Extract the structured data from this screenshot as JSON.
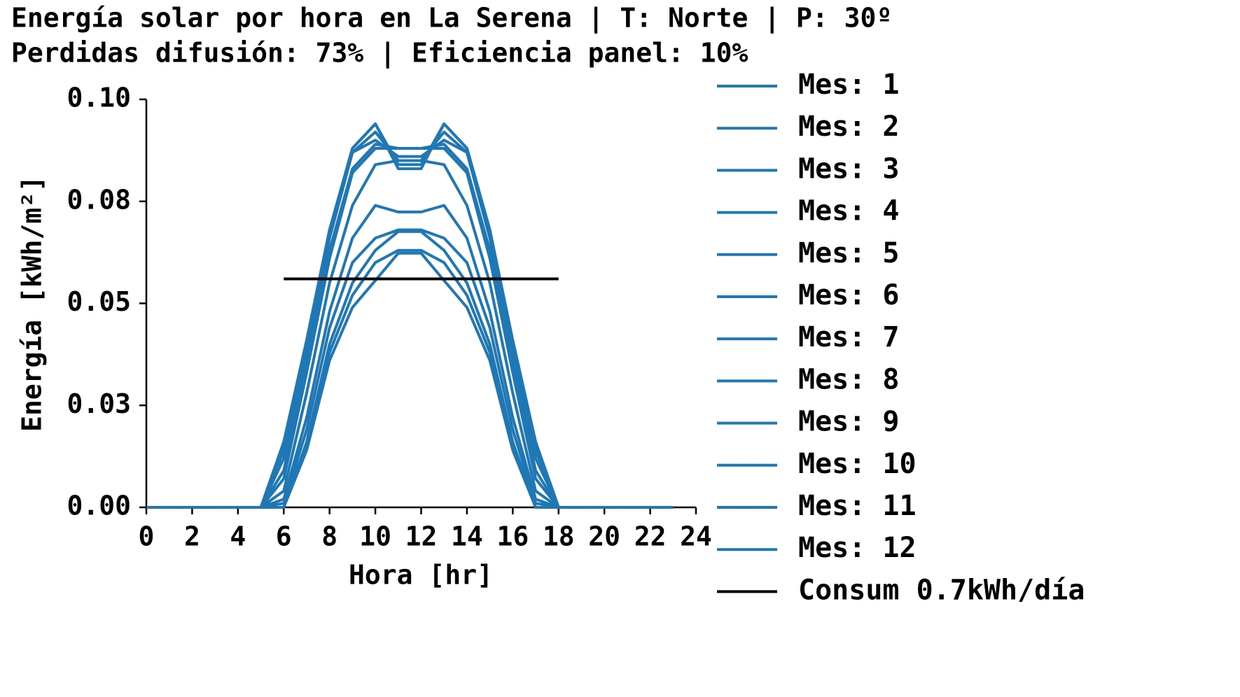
{
  "chart_data": {
    "type": "line",
    "title": "Energía solar por hora en La Serena | T: Norte | P: 30º",
    "subtitle": "Perdidas difusión: 73% | Eficiencia panel: 10%",
    "x_label": "Hora [hr]",
    "y_label": "Energía [kWh/m²]",
    "x": [
      0,
      1,
      2,
      3,
      4,
      5,
      6,
      7,
      8,
      9,
      10,
      11,
      12,
      13,
      14,
      15,
      16,
      17,
      18,
      19,
      20,
      21,
      22,
      23
    ],
    "xlim": [
      0,
      24
    ],
    "xticks": [
      0,
      2,
      4,
      6,
      8,
      10,
      12,
      14,
      16,
      18,
      20,
      22,
      24
    ],
    "ylim": [
      0,
      0.1
    ],
    "yticks": [
      {
        "value": 0,
        "label": "0.00"
      },
      {
        "value": 0.025,
        "label": "0.03"
      },
      0.05,
      {
        "value": 0.075,
        "label": "0.08"
      },
      {
        "value": 0.1,
        "label": "0.10"
      }
    ],
    "grid": false,
    "legend": "right",
    "series": [
      {
        "name": "Mes: 1",
        "color": "#1f77b4",
        "values": [
          0,
          0,
          0,
          0,
          0,
          0,
          0.016,
          0.04,
          0.068,
          0.088,
          0.094,
          0.084,
          0.084,
          0.094,
          0.088,
          0.068,
          0.04,
          0.016,
          0,
          0,
          0,
          0,
          0,
          0
        ]
      },
      {
        "name": "Mes: 2",
        "color": "#1f77b4",
        "values": [
          0,
          0,
          0,
          0,
          0,
          0,
          0.012,
          0.038,
          0.066,
          0.087,
          0.09,
          0.086,
          0.086,
          0.09,
          0.087,
          0.066,
          0.038,
          0.012,
          0,
          0,
          0,
          0,
          0,
          0
        ]
      },
      {
        "name": "Mes: 3",
        "color": "#1f77b4",
        "values": [
          0,
          0,
          0,
          0,
          0,
          0,
          0.007,
          0.033,
          0.061,
          0.082,
          0.088,
          0.088,
          0.088,
          0.088,
          0.082,
          0.061,
          0.033,
          0.007,
          0,
          0,
          0,
          0,
          0,
          0
        ]
      },
      {
        "name": "Mes: 4",
        "color": "#1f77b4",
        "values": [
          0,
          0,
          0,
          0,
          0,
          0,
          0.002,
          0.022,
          0.048,
          0.066,
          0.074,
          0.0724,
          0.0724,
          0.074,
          0.066,
          0.048,
          0.022,
          0.002,
          0,
          0,
          0,
          0,
          0,
          0
        ]
      },
      {
        "name": "Mes: 5",
        "color": "#1f77b4",
        "values": [
          0,
          0,
          0,
          0,
          0,
          0,
          0,
          0.016,
          0.04,
          0.055,
          0.063,
          0.0676,
          0.0676,
          0.063,
          0.055,
          0.04,
          0.016,
          0,
          0,
          0,
          0,
          0,
          0,
          0
        ]
      },
      {
        "name": "Mes: 6",
        "color": "#1f77b4",
        "values": [
          0,
          0,
          0,
          0,
          0,
          0,
          0,
          0.014,
          0.036,
          0.049,
          0.0556,
          0.0623,
          0.0623,
          0.0556,
          0.049,
          0.036,
          0.014,
          0,
          0,
          0,
          0,
          0,
          0,
          0
        ]
      },
      {
        "name": "Mes: 7",
        "color": "#1f77b4",
        "values": [
          0,
          0,
          0,
          0,
          0,
          0,
          0,
          0.015,
          0.038,
          0.052,
          0.06,
          0.063,
          0.063,
          0.06,
          0.052,
          0.038,
          0.015,
          0,
          0,
          0,
          0,
          0,
          0,
          0
        ]
      },
      {
        "name": "Mes: 8",
        "color": "#1f77b4",
        "values": [
          0,
          0,
          0,
          0,
          0,
          0,
          0.001,
          0.019,
          0.044,
          0.06,
          0.066,
          0.068,
          0.068,
          0.066,
          0.06,
          0.044,
          0.019,
          0.001,
          0,
          0,
          0,
          0,
          0,
          0
        ]
      },
      {
        "name": "Mes: 9",
        "color": "#1f77b4",
        "values": [
          0,
          0,
          0,
          0,
          0,
          0,
          0.004,
          0.028,
          0.055,
          0.074,
          0.084,
          0.085,
          0.085,
          0.084,
          0.074,
          0.055,
          0.028,
          0.004,
          0,
          0,
          0,
          0,
          0,
          0
        ]
      },
      {
        "name": "Mes: 10",
        "color": "#1f77b4",
        "values": [
          0,
          0,
          0,
          0,
          0,
          0,
          0.009,
          0.035,
          0.063,
          0.083,
          0.089,
          0.088,
          0.088,
          0.089,
          0.083,
          0.063,
          0.035,
          0.009,
          0,
          0,
          0,
          0,
          0,
          0
        ]
      },
      {
        "name": "Mes: 11",
        "color": "#1f77b4",
        "values": [
          0,
          0,
          0,
          0,
          0,
          0,
          0.014,
          0.039,
          0.067,
          0.087,
          0.092,
          0.085,
          0.085,
          0.092,
          0.087,
          0.067,
          0.039,
          0.014,
          0,
          0,
          0,
          0,
          0,
          0
        ]
      },
      {
        "name": "Mes: 12",
        "color": "#1f77b4",
        "values": [
          0,
          0,
          0,
          0,
          0,
          0,
          0.016,
          0.041,
          0.068,
          0.088,
          0.094,
          0.083,
          0.083,
          0.094,
          0.088,
          0.068,
          0.041,
          0.016,
          0,
          0,
          0,
          0,
          0,
          0
        ]
      },
      {
        "name": "Consum 0.7kWh/día",
        "color": "#000000",
        "x": [
          6,
          18
        ],
        "values": [
          0.056,
          0.056
        ]
      }
    ]
  }
}
